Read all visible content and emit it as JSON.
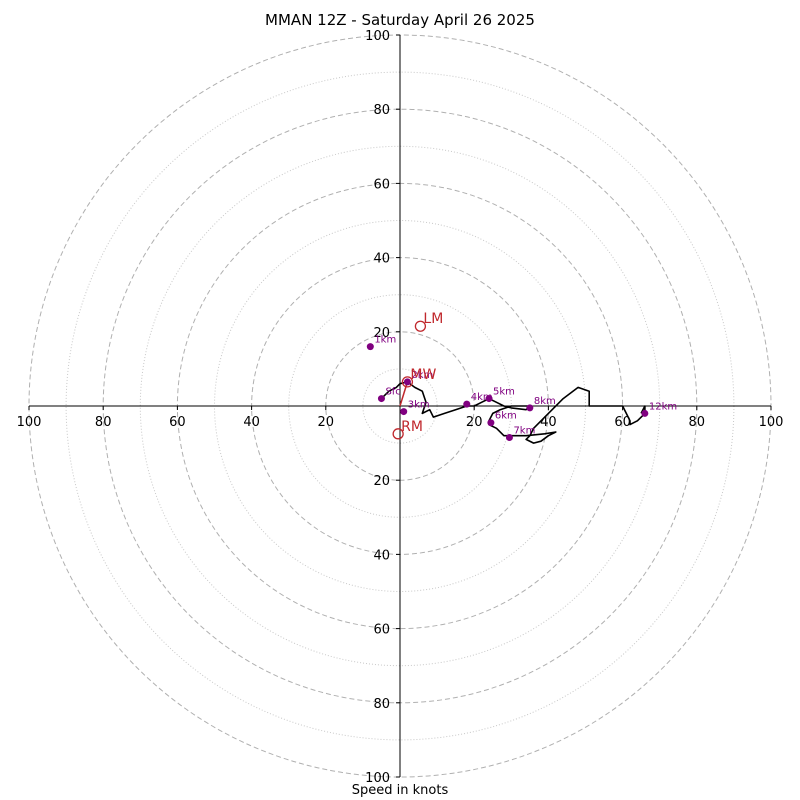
{
  "chart_data": {
    "type": "hodograph",
    "title": "MMAN 12Z - Saturday April 26 2025",
    "xlabel": "Speed in knots",
    "ring_max": 100,
    "major_rings": [
      20,
      40,
      60,
      80,
      100
    ],
    "minor_rings": [
      10,
      30,
      50,
      70,
      90
    ],
    "tick_labels": {
      "right": [
        "20",
        "40",
        "60",
        "80",
        "100"
      ],
      "left": [
        "20",
        "40",
        "60",
        "80",
        "100"
      ],
      "top": [
        "20",
        "40",
        "60",
        "80",
        "100"
      ],
      "bottom": [
        "20",
        "40",
        "60",
        "80",
        "100"
      ]
    },
    "grid": true,
    "trace": [
      [
        -5,
        2
      ],
      [
        -3,
        4
      ],
      [
        -1,
        5
      ],
      [
        0,
        6
      ],
      [
        2,
        6.5
      ],
      [
        4,
        5
      ],
      [
        6,
        4
      ],
      [
        7,
        1
      ],
      [
        6,
        -2
      ],
      [
        8,
        -1
      ],
      [
        9,
        -3
      ],
      [
        12,
        -2
      ],
      [
        15,
        -1
      ],
      [
        18,
        0
      ],
      [
        20,
        0
      ],
      [
        22,
        1
      ],
      [
        24,
        2
      ],
      [
        26,
        1
      ],
      [
        28,
        0
      ],
      [
        30,
        -0.5
      ],
      [
        34,
        -1
      ],
      [
        35,
        0
      ],
      [
        33,
        0
      ],
      [
        30,
        0
      ],
      [
        27,
        -1
      ],
      [
        25,
        -2
      ],
      [
        24,
        -4
      ],
      [
        24,
        -5
      ],
      [
        26,
        -6
      ],
      [
        28,
        -8
      ],
      [
        30,
        -8
      ],
      [
        34,
        -8
      ],
      [
        39,
        -7.5
      ],
      [
        42,
        -7
      ],
      [
        40,
        -8
      ],
      [
        38,
        -9.5
      ],
      [
        36,
        -10
      ],
      [
        34,
        -9
      ],
      [
        35,
        -8
      ],
      [
        36,
        -6
      ],
      [
        40,
        -2
      ],
      [
        44,
        2
      ],
      [
        48,
        5
      ],
      [
        51,
        4
      ],
      [
        51,
        0
      ],
      [
        56,
        0
      ],
      [
        60,
        0
      ],
      [
        61,
        -2
      ],
      [
        62,
        -4
      ],
      [
        62,
        -5
      ],
      [
        64,
        -4
      ],
      [
        66,
        -2
      ],
      [
        66,
        0
      ],
      [
        65,
        -2
      ]
    ],
    "points": [
      {
        "label": "Sfc",
        "u": -5,
        "v": 2
      },
      {
        "label": "1km",
        "u": -8,
        "v": 16
      },
      {
        "label": "2km",
        "u": 2,
        "v": 6.5
      },
      {
        "label": "3km",
        "u": 1,
        "v": -1.5
      },
      {
        "label": "4km",
        "u": 18,
        "v": 0.5
      },
      {
        "label": "5km",
        "u": 24,
        "v": 2
      },
      {
        "label": "6km",
        "u": 24.5,
        "v": -4.5
      },
      {
        "label": "7km",
        "u": 29.5,
        "v": -8.5
      },
      {
        "label": "8km",
        "u": 35,
        "v": -0.5
      },
      {
        "label": "12km",
        "u": 66,
        "v": -2
      }
    ],
    "motions": [
      {
        "label": "LM",
        "u": 5.5,
        "v": 21.5
      },
      {
        "label": "MW",
        "u": 2,
        "v": 6.5
      },
      {
        "label": "RM",
        "u": -0.5,
        "v": -7.5
      }
    ],
    "colors": {
      "trace": "#000000",
      "height_points": "#800080",
      "storm_motion": "#c0282d",
      "grid": "#b0b0b0"
    }
  }
}
